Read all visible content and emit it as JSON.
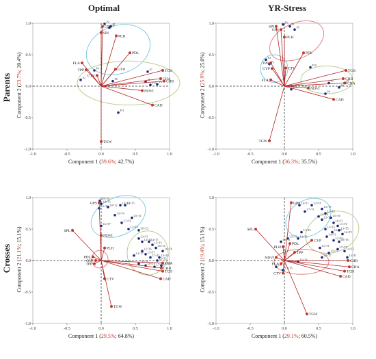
{
  "columns": [
    "Optimal",
    "YR-Stress"
  ],
  "rows": [
    "Parents",
    "Crosses"
  ],
  "colors": {
    "trait_vector": "#b22222",
    "trait_point": "#c0392b",
    "genotype_point": "#1f2a7a",
    "ellipse_blue": "#7ec8e3",
    "ellipse_red": "#e08080",
    "ellipse_green": "#b5cf8a",
    "axis": "#333333"
  },
  "chart_data": [
    {
      "type": "scatter",
      "subtype": "biplot",
      "column": "Optimal",
      "row": "Parents",
      "xlim": [
        -1.0,
        1.0
      ],
      "ylim": [
        -1.0,
        1.0
      ],
      "xticks": [
        "-1.0",
        "-0.5",
        "0.0",
        "0.5",
        "1.0"
      ],
      "yticks": [
        "-1.0",
        "-0.5",
        "0.0",
        "0.5",
        "1.0"
      ],
      "xlabel": {
        "prefix": "Component 1 (",
        "red": "39.6%",
        "rest": "; 42.7%)"
      },
      "ylabel": {
        "prefix": "Component 2 (",
        "red": "23.7%",
        "rest": "; 20.4%)"
      },
      "vectors": [
        {
          "name": "GPS",
          "x": 0.02,
          "y": 0.95
        },
        {
          "name": "SPI",
          "x": 0.0,
          "y": 0.85
        },
        {
          "name": "PLH",
          "x": 0.22,
          "y": 0.8
        },
        {
          "name": "PDL",
          "x": 0.42,
          "y": 0.53
        },
        {
          "name": "FLA",
          "x": -0.28,
          "y": 0.37
        },
        {
          "name": "TPP",
          "x": -0.22,
          "y": 0.26
        },
        {
          "name": "GYP",
          "x": 0.21,
          "y": 0.27
        },
        {
          "name": "TCH",
          "x": 0.9,
          "y": 0.25
        },
        {
          "name": "CHA",
          "x": 0.87,
          "y": 0.12
        },
        {
          "name": "CHB",
          "x": 0.92,
          "y": 0.08
        },
        {
          "name": "NDVI",
          "x": 0.6,
          "y": -0.07
        },
        {
          "name": "CAD",
          "x": 0.75,
          "y": -0.3
        },
        {
          "name": "CTV",
          "x": -0.06,
          "y": 0.17
        },
        {
          "name": "TGW",
          "x": 0.0,
          "y": -0.88
        }
      ],
      "points": [
        {
          "label": "P2",
          "x": 0.05,
          "y": 0.99
        },
        {
          "label": "P5",
          "x": 0.12,
          "y": 0.93
        },
        {
          "label": "P1",
          "x": 0.14,
          "y": 0.95
        },
        {
          "label": "P4",
          "x": -0.1,
          "y": 0.25
        },
        {
          "label": "P3",
          "x": -0.3,
          "y": 0.1
        },
        {
          "label": "P7",
          "x": 0.68,
          "y": 0.23
        },
        {
          "label": "P8",
          "x": 0.65,
          "y": 0.07
        },
        {
          "label": "P9",
          "x": 0.82,
          "y": 0.03
        },
        {
          "label": "P10",
          "x": 0.72,
          "y": 0.02
        },
        {
          "label": "P6",
          "x": 0.17,
          "y": 0.08
        },
        {
          "label": "P11",
          "x": 0.25,
          "y": -0.42
        }
      ],
      "ellipses": [
        {
          "color": "blue",
          "cx": 0.25,
          "cy": 0.58,
          "rx": 0.48,
          "ry": 0.38,
          "angle": -20
        },
        {
          "color": "green",
          "cx": 0.4,
          "cy": 0.05,
          "rx": 0.75,
          "ry": 0.35,
          "angle": 0
        }
      ]
    },
    {
      "type": "scatter",
      "subtype": "biplot",
      "column": "YR-Stress",
      "row": "Parents",
      "xlim": [
        -1.0,
        1.0
      ],
      "ylim": [
        -1.0,
        1.0
      ],
      "xticks": [
        "-1.0",
        "-0.5",
        "0.0",
        "0.5",
        "1.0"
      ],
      "yticks": [
        "-1.0",
        "-0.5",
        "0.0",
        "0.5",
        "1.0"
      ],
      "xlabel": {
        "prefix": "Component 1 (",
        "red": "36.3%",
        "rest": "; 35.5%)"
      },
      "ylabel": {
        "prefix": "Component 2 (",
        "red": "25.9%",
        "rest": "; 25.0%)"
      },
      "vectors": [
        {
          "name": "SPI",
          "x": -0.12,
          "y": 0.95
        },
        {
          "name": "GPS",
          "x": -0.05,
          "y": 0.9
        },
        {
          "name": "PLH",
          "x": 0.0,
          "y": 0.78
        },
        {
          "name": "PDL",
          "x": 0.28,
          "y": 0.53
        },
        {
          "name": "TPP",
          "x": -0.2,
          "y": 0.37
        },
        {
          "name": "GYP",
          "x": -0.18,
          "y": 0.28
        },
        {
          "name": "FLA",
          "x": -0.2,
          "y": 0.1
        },
        {
          "name": "CTV",
          "x": 0.02,
          "y": 0.29
        },
        {
          "name": "TCH",
          "x": 0.9,
          "y": 0.25
        },
        {
          "name": "CHB",
          "x": 0.86,
          "y": 0.12
        },
        {
          "name": "CHA",
          "x": 0.89,
          "y": 0.05
        },
        {
          "name": "NDVI",
          "x": 0.35,
          "y": -0.03
        },
        {
          "name": "CAD",
          "x": 0.72,
          "y": -0.21
        },
        {
          "name": "TGW",
          "x": -0.22,
          "y": -0.87
        }
      ],
      "points": [
        {
          "label": "P2",
          "x": -0.02,
          "y": 0.98
        },
        {
          "label": "P1",
          "x": 0.08,
          "y": 0.95
        },
        {
          "label": "P5",
          "x": 0.15,
          "y": 0.9
        },
        {
          "label": "P4",
          "x": -0.27,
          "y": 0.42
        },
        {
          "label": "P3",
          "x": -0.22,
          "y": 0.35
        },
        {
          "label": "P10",
          "x": 0.38,
          "y": 0.3
        },
        {
          "label": "P7",
          "x": 0.65,
          "y": 0.05
        },
        {
          "label": "P8",
          "x": 0.8,
          "y": -0.02
        },
        {
          "label": "P9",
          "x": 0.88,
          "y": 0.05
        },
        {
          "label": "P6",
          "x": 0.6,
          "y": -0.12
        },
        {
          "label": "P11",
          "x": 0.1,
          "y": -0.05
        }
      ],
      "ellipses": [
        {
          "color": "red",
          "cx": 0.18,
          "cy": 0.72,
          "rx": 0.42,
          "ry": 0.28,
          "angle": -25
        },
        {
          "color": "blue",
          "cx": -0.15,
          "cy": 0.28,
          "rx": 0.2,
          "ry": 0.22,
          "angle": 0
        },
        {
          "color": "green",
          "cx": 0.62,
          "cy": 0.1,
          "rx": 0.38,
          "ry": 0.22,
          "angle": 0
        }
      ]
    },
    {
      "type": "scatter",
      "subtype": "biplot",
      "column": "Optimal",
      "row": "Crosses",
      "xlim": [
        -1.0,
        1.0
      ],
      "ylim": [
        -1.0,
        1.0
      ],
      "xticks": [
        "-1.0",
        "-0.5",
        "0.0",
        "0.5",
        "1.0"
      ],
      "yticks": [
        "-1.0",
        "-0.5",
        "0.0",
        "0.5",
        "1.0"
      ],
      "xlabel": {
        "prefix": "Component 1 (",
        "red": "29.5%",
        "rest": "; 64.8%)"
      },
      "ylabel": {
        "prefix": "Component 2 (",
        "red": "21.1%",
        "rest": "; 15.1%)"
      },
      "vectors": [
        {
          "name": "GPS",
          "x": -0.03,
          "y": 0.92
        },
        {
          "name": "SPL",
          "x": -0.42,
          "y": 0.48
        },
        {
          "name": "NDVI",
          "x": 0.0,
          "y": 0.4
        },
        {
          "name": "PLH",
          "x": 0.05,
          "y": 0.2
        },
        {
          "name": "PDL",
          "x": -0.12,
          "y": 0.06
        },
        {
          "name": "GYP",
          "x": -0.08,
          "y": 0.0
        },
        {
          "name": "TPP",
          "x": -0.1,
          "y": -0.05
        },
        {
          "name": "CTV",
          "x": 0.05,
          "y": -0.29
        },
        {
          "name": "TGW",
          "x": 0.15,
          "y": -0.73
        },
        {
          "name": "CHA",
          "x": 0.9,
          "y": -0.04
        },
        {
          "name": "CHB",
          "x": 0.88,
          "y": -0.12
        },
        {
          "name": "TCH",
          "x": 0.9,
          "y": -0.17
        },
        {
          "name": "CAD",
          "x": 0.87,
          "y": -0.29
        }
      ],
      "points": [
        {
          "label": "L9×T8",
          "x": -0.02,
          "y": 0.95
        },
        {
          "label": "L8×T5",
          "x": 0.0,
          "y": 0.9
        },
        {
          "label": "L6×T2",
          "x": -0.03,
          "y": 0.83
        },
        {
          "label": "L8×T2",
          "x": 0.1,
          "y": 0.85
        },
        {
          "label": "L3×T5",
          "x": 0.28,
          "y": 0.88
        },
        {
          "label": "L4×T5",
          "x": 0.35,
          "y": 0.88
        },
        {
          "label": "L3×T4",
          "x": 0.2,
          "y": 0.72
        },
        {
          "label": "L7×T6",
          "x": 0.3,
          "y": 0.6
        },
        {
          "label": "L5×T1",
          "x": 0.45,
          "y": 0.68
        },
        {
          "label": "L6×T7",
          "x": 0.0,
          "y": 0.55
        },
        {
          "label": "L2×T3",
          "x": 0.4,
          "y": 0.5
        },
        {
          "label": "L6×T2",
          "x": 0.55,
          "y": 0.48
        },
        {
          "label": "L4×T2",
          "x": 0.6,
          "y": 0.3
        },
        {
          "label": "L3×T1",
          "x": 0.55,
          "y": 0.35
        },
        {
          "label": "L4×T7",
          "x": 0.7,
          "y": 0.3
        },
        {
          "label": "L5×T2",
          "x": 0.75,
          "y": 0.25
        },
        {
          "label": "L6×T4",
          "x": 0.8,
          "y": 0.2
        },
        {
          "label": "L2×T6",
          "x": 0.6,
          "y": 0.15
        },
        {
          "label": "L1×T7",
          "x": 0.65,
          "y": 0.1
        },
        {
          "label": "L6×T8",
          "x": 0.9,
          "y": 0.15
        },
        {
          "label": "L3×T7",
          "x": 0.48,
          "y": 0.08
        },
        {
          "label": "L7×T1",
          "x": 0.72,
          "y": 0.05
        },
        {
          "label": "L5×T4",
          "x": 0.85,
          "y": 0.05
        },
        {
          "label": "L2×T2",
          "x": 0.82,
          "y": 0.0
        },
        {
          "label": "L6×T6",
          "x": 0.55,
          "y": -0.05
        },
        {
          "label": "L8×T4",
          "x": 0.65,
          "y": -0.08
        },
        {
          "label": "L7×T5",
          "x": 0.78,
          "y": -0.1
        },
        {
          "label": "L5×T5",
          "x": 0.88,
          "y": -0.08
        }
      ],
      "ellipses": [
        {
          "color": "blue",
          "cx": 0.25,
          "cy": 0.7,
          "rx": 0.42,
          "ry": 0.3,
          "angle": -25
        },
        {
          "color": "green",
          "cx": 0.68,
          "cy": 0.12,
          "rx": 0.3,
          "ry": 0.35,
          "angle": 0
        },
        {
          "color": "red",
          "cx": -0.02,
          "cy": 0.02,
          "rx": 0.12,
          "ry": 0.14,
          "angle": 0
        }
      ]
    },
    {
      "type": "scatter",
      "subtype": "biplot",
      "column": "YR-Stress",
      "row": "Crosses",
      "xlim": [
        -1.0,
        1.0
      ],
      "ylim": [
        -1.0,
        1.0
      ],
      "xticks": [
        "-1.0",
        "-0.5",
        "0.0",
        "0.5",
        "1.0"
      ],
      "yticks": [
        "-1.0",
        "-0.5",
        "0.0",
        "0.5",
        "1.0"
      ],
      "xlabel": {
        "prefix": "Component 1 (",
        "red": "29.1%",
        "rest": "; 60.5%)"
      },
      "ylabel": {
        "prefix": "Component 2 (",
        "red": "19.4%",
        "rest": "; 15.1%)"
      },
      "vectors": [
        {
          "name": "GPS",
          "x": 0.1,
          "y": 0.92
        },
        {
          "name": "SPL",
          "x": -0.42,
          "y": 0.5
        },
        {
          "name": "GYP",
          "x": 0.4,
          "y": 0.32
        },
        {
          "name": "PDL",
          "x": 0.08,
          "y": 0.27
        },
        {
          "name": "PLH",
          "x": -0.02,
          "y": 0.22
        },
        {
          "name": "TPP",
          "x": 0.15,
          "y": 0.13
        },
        {
          "name": "NDVI",
          "x": -0.12,
          "y": 0.05
        },
        {
          "name": "FLA",
          "x": -0.05,
          "y": -0.05
        },
        {
          "name": "CTV",
          "x": -0.02,
          "y": -0.2
        },
        {
          "name": "TGW",
          "x": 0.33,
          "y": -0.85
        },
        {
          "name": "CHB",
          "x": 0.93,
          "y": 0.0
        },
        {
          "name": "CHA",
          "x": 0.95,
          "y": -0.1
        },
        {
          "name": "TCH",
          "x": 0.88,
          "y": -0.17
        },
        {
          "name": "CAD",
          "x": 0.82,
          "y": -0.25
        }
      ],
      "points": [
        {
          "label": "L6×T1",
          "x": 0.22,
          "y": 0.88
        },
        {
          "label": "L2×T8",
          "x": 0.4,
          "y": 0.88
        },
        {
          "label": "L5×T5",
          "x": 0.55,
          "y": 0.82
        },
        {
          "label": "L3×T3",
          "x": 0.6,
          "y": 0.75
        },
        {
          "label": "L7×T1",
          "x": 0.3,
          "y": 0.78
        },
        {
          "label": "L1×T8",
          "x": 0.5,
          "y": 0.7
        },
        {
          "label": "L3×T4",
          "x": 0.55,
          "y": 0.65
        },
        {
          "label": "L5×T6",
          "x": 0.68,
          "y": 0.68
        },
        {
          "label": "L6×T2",
          "x": 0.72,
          "y": 0.6
        },
        {
          "label": "L1×T6",
          "x": 0.78,
          "y": 0.55
        },
        {
          "label": "L5×T3",
          "x": 0.6,
          "y": 0.5
        },
        {
          "label": "L6×T3",
          "x": 0.7,
          "y": 0.45
        },
        {
          "label": "L3×T5",
          "x": 0.8,
          "y": 0.48
        },
        {
          "label": "L6×T5",
          "x": 0.85,
          "y": 0.42
        },
        {
          "label": "L4×T1",
          "x": 0.62,
          "y": 0.38
        },
        {
          "label": "L2×T4",
          "x": 0.72,
          "y": 0.32
        },
        {
          "label": "L8×T6",
          "x": 0.8,
          "y": 0.3
        },
        {
          "label": "L1×T1",
          "x": 0.52,
          "y": 0.2
        },
        {
          "label": "L5×T7",
          "x": 0.65,
          "y": 0.12
        },
        {
          "label": "L7×T7",
          "x": 0.78,
          "y": 0.18
        },
        {
          "label": "L4×T5",
          "x": 0.88,
          "y": 0.15
        },
        {
          "label": "L8×T7",
          "x": 0.55,
          "y": 0.05
        },
        {
          "label": "L3×T1",
          "x": 0.92,
          "y": 0.05
        },
        {
          "label": "L2×T6",
          "x": 0.25,
          "y": 0.45
        },
        {
          "label": "L4×T2",
          "x": 0.2,
          "y": 0.35
        },
        {
          "label": "L5×T1",
          "x": 0.05,
          "y": 0.35
        },
        {
          "label": "L8×T1",
          "x": -0.05,
          "y": 0.3
        },
        {
          "label": "L6×T4",
          "x": 0.2,
          "y": -0.02
        },
        {
          "label": "L1×T5",
          "x": -0.02,
          "y": -0.15
        },
        {
          "label": "L6×T3",
          "x": -0.12,
          "y": -0.1
        }
      ],
      "ellipses": [
        {
          "color": "blue",
          "cx": 0.35,
          "cy": 0.68,
          "rx": 0.35,
          "ry": 0.28,
          "angle": -30
        },
        {
          "color": "green",
          "cx": 0.7,
          "cy": 0.45,
          "rx": 0.4,
          "ry": 0.32,
          "angle": -20
        },
        {
          "color": "red",
          "cx": 0.25,
          "cy": -0.02,
          "rx": 0.4,
          "ry": 0.2,
          "angle": 0
        }
      ]
    }
  ]
}
